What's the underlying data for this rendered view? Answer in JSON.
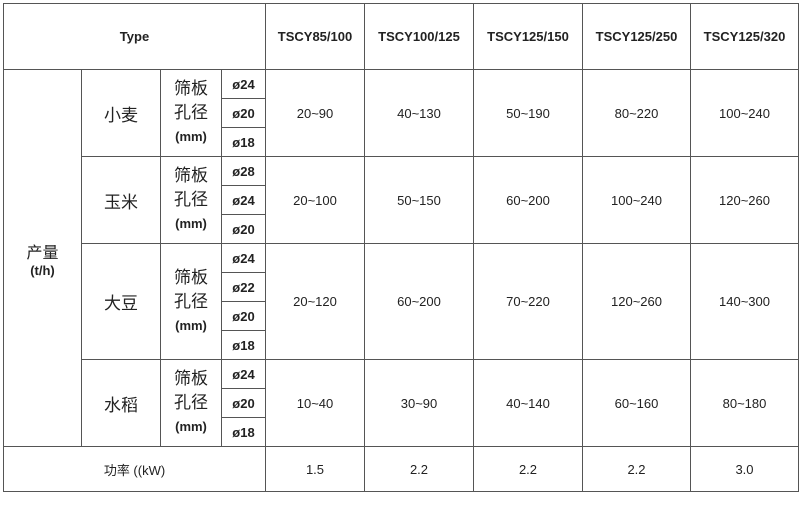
{
  "header": {
    "type_label": "Type",
    "models": [
      "TSCY85/100",
      "TSCY100/125",
      "TSCY125/150",
      "TSCY125/250",
      "TSCY125/320"
    ]
  },
  "yield_label": "产量",
  "yield_unit": "(t/h)",
  "sieve_label_1": "筛板",
  "sieve_label_2": "孔径",
  "sieve_unit": "(mm)",
  "grains": [
    {
      "name": "小麦",
      "diameters": [
        "ø24",
        "ø20",
        "ø18"
      ],
      "values": [
        "20~90",
        "40~130",
        "50~190",
        "80~220",
        "100~240"
      ]
    },
    {
      "name": "玉米",
      "diameters": [
        "ø28",
        "ø24",
        "ø20"
      ],
      "values": [
        "20~100",
        "50~150",
        "60~200",
        "100~240",
        "120~260"
      ]
    },
    {
      "name": "大豆",
      "diameters": [
        "ø24",
        "ø22",
        "ø20",
        "ø18"
      ],
      "values": [
        "20~120",
        "60~200",
        "70~220",
        "120~260",
        "140~300"
      ]
    },
    {
      "name": "水稻",
      "diameters": [
        "ø24",
        "ø20",
        "ø18"
      ],
      "values": [
        "10~40",
        "30~90",
        "40~140",
        "60~160",
        "80~180"
      ]
    }
  ],
  "power": {
    "label": "功率 ((kW)",
    "values": [
      "1.5",
      "2.2",
      "2.2",
      "2.2",
      "3.0"
    ]
  }
}
